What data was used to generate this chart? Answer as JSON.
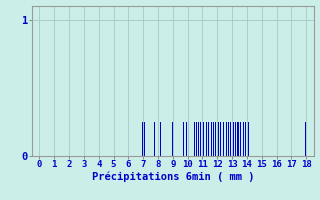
{
  "xlabel": "Précipitations 6min ( mm )",
  "xlim": [
    -0.5,
    18.5
  ],
  "ylim": [
    0,
    1.1
  ],
  "yticks": [
    0,
    1
  ],
  "xticks": [
    0,
    1,
    2,
    3,
    4,
    5,
    6,
    7,
    8,
    9,
    10,
    11,
    12,
    13,
    14,
    15,
    16,
    17,
    18
  ],
  "background_color": "#cceee8",
  "bar_color": "#0000cc",
  "grid_color": "#aacccc",
  "bar_positions": [
    6.95,
    7.1,
    7.75,
    8.15,
    8.95,
    9.75,
    9.9,
    10.05,
    10.45,
    10.6,
    10.75,
    10.9,
    11.1,
    11.25,
    11.4,
    11.6,
    11.75,
    11.9,
    12.1,
    12.25,
    12.4,
    12.6,
    12.75,
    12.9,
    13.1,
    13.25,
    13.4,
    13.6,
    13.75,
    13.9,
    14.1,
    17.95
  ],
  "bar_heights": [
    0.25,
    0.25,
    0.25,
    0.25,
    0.25,
    0.25,
    0.25,
    0.25,
    0.25,
    0.25,
    0.25,
    0.25,
    0.25,
    0.25,
    0.25,
    0.25,
    0.25,
    0.25,
    0.25,
    0.25,
    0.25,
    0.25,
    0.25,
    0.25,
    0.25,
    0.25,
    0.25,
    0.25,
    0.25,
    0.25,
    0.25,
    0.25
  ],
  "bar_width": 0.07,
  "tick_fontsize": 6.5,
  "xlabel_fontsize": 7.5,
  "ytick_fontsize": 7.5
}
